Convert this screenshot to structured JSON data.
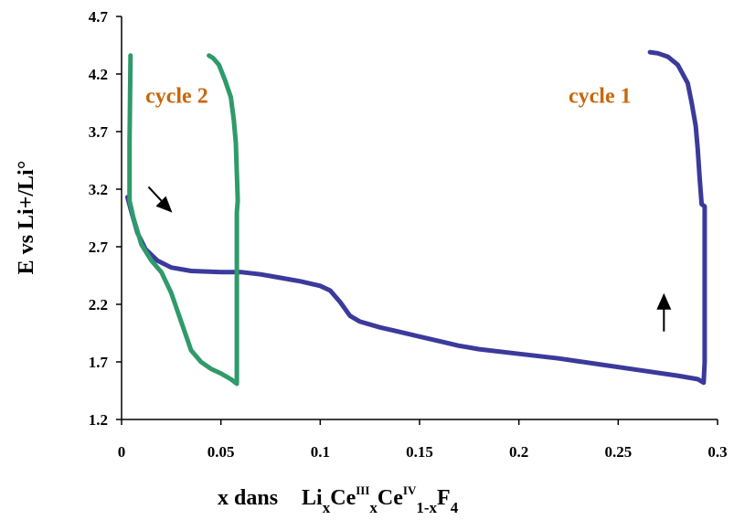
{
  "chart_data": {
    "type": "line",
    "title": "",
    "xlabel": {
      "parts": [
        {
          "text": "x  dans",
          "role": "base"
        },
        {
          "text": "Li",
          "role": "base"
        },
        {
          "text": "x",
          "role": "sub"
        },
        {
          "text": "Ce",
          "role": "base"
        },
        {
          "text": "III",
          "role": "sup"
        },
        {
          "text": "x",
          "role": "sub"
        },
        {
          "text": "Ce",
          "role": "base"
        },
        {
          "text": "IV",
          "role": "sup"
        },
        {
          "text": "1-x",
          "role": "sub"
        },
        {
          "text": "F",
          "role": "base"
        },
        {
          "text": "4",
          "role": "sub"
        }
      ]
    },
    "ylabel": "E vs Li+/Li°",
    "xlim": [
      0,
      0.3
    ],
    "ylim": [
      1.2,
      4.7
    ],
    "x_ticks": [
      "0",
      "0.05",
      "0.1",
      "0.15",
      "0.2",
      "0.25",
      "0.3"
    ],
    "y_ticks": [
      "1.2",
      "1.7",
      "2.2",
      "2.7",
      "3.2",
      "3.7",
      "4.2",
      "4.7"
    ],
    "grid": false,
    "legend": "none",
    "series": [
      {
        "name": "cycle 1",
        "color": "#3b3a9c",
        "points": [
          [
            0.003,
            3.13
          ],
          [
            0.005,
            3.0
          ],
          [
            0.008,
            2.82
          ],
          [
            0.012,
            2.68
          ],
          [
            0.018,
            2.58
          ],
          [
            0.025,
            2.52
          ],
          [
            0.035,
            2.49
          ],
          [
            0.05,
            2.48
          ],
          [
            0.06,
            2.48
          ],
          [
            0.07,
            2.46
          ],
          [
            0.08,
            2.43
          ],
          [
            0.09,
            2.4
          ],
          [
            0.1,
            2.36
          ],
          [
            0.105,
            2.32
          ],
          [
            0.11,
            2.22
          ],
          [
            0.115,
            2.1
          ],
          [
            0.12,
            2.05
          ],
          [
            0.13,
            2.0
          ],
          [
            0.14,
            1.96
          ],
          [
            0.15,
            1.92
          ],
          [
            0.16,
            1.88
          ],
          [
            0.17,
            1.84
          ],
          [
            0.18,
            1.81
          ],
          [
            0.2,
            1.77
          ],
          [
            0.22,
            1.73
          ],
          [
            0.24,
            1.68
          ],
          [
            0.26,
            1.63
          ],
          [
            0.28,
            1.58
          ],
          [
            0.29,
            1.55
          ],
          [
            0.293,
            1.52
          ],
          [
            0.2935,
            1.7
          ],
          [
            0.2935,
            2.2
          ],
          [
            0.2935,
            2.8
          ],
          [
            0.2935,
            3.05
          ],
          [
            0.292,
            3.07
          ],
          [
            0.291,
            3.3
          ],
          [
            0.29,
            3.55
          ],
          [
            0.289,
            3.75
          ],
          [
            0.287,
            3.95
          ],
          [
            0.285,
            4.12
          ],
          [
            0.28,
            4.28
          ],
          [
            0.275,
            4.35
          ],
          [
            0.27,
            4.38
          ],
          [
            0.266,
            4.39
          ]
        ]
      },
      {
        "name": "cycle 2",
        "color": "#2f9a6a",
        "points": [
          [
            0.0045,
            4.36
          ],
          [
            0.004,
            3.6
          ],
          [
            0.004,
            3.1
          ],
          [
            0.006,
            2.95
          ],
          [
            0.01,
            2.72
          ],
          [
            0.015,
            2.58
          ],
          [
            0.02,
            2.48
          ],
          [
            0.025,
            2.3
          ],
          [
            0.03,
            2.05
          ],
          [
            0.035,
            1.8
          ],
          [
            0.04,
            1.7
          ],
          [
            0.045,
            1.64
          ],
          [
            0.05,
            1.6
          ],
          [
            0.055,
            1.55
          ],
          [
            0.058,
            1.51
          ],
          [
            0.058,
            1.8
          ],
          [
            0.058,
            2.5
          ],
          [
            0.058,
            2.85
          ],
          [
            0.058,
            3.0
          ],
          [
            0.0585,
            3.1
          ],
          [
            0.0575,
            3.6
          ],
          [
            0.0565,
            3.8
          ],
          [
            0.055,
            4.0
          ],
          [
            0.052,
            4.15
          ],
          [
            0.049,
            4.28
          ],
          [
            0.046,
            4.34
          ],
          [
            0.044,
            4.36
          ]
        ]
      }
    ],
    "annotations": [
      {
        "text": "cycle 2",
        "color": "#c7670c",
        "x": 0.012,
        "y": 3.95
      },
      {
        "text": "cycle 1",
        "color": "#c7670c",
        "x": 0.225,
        "y": 3.95
      }
    ],
    "arrows": [
      {
        "direction": "down-right",
        "x": 0.02,
        "y": 3.1
      },
      {
        "direction": "up",
        "x": 0.273,
        "y": 2.25
      }
    ]
  }
}
